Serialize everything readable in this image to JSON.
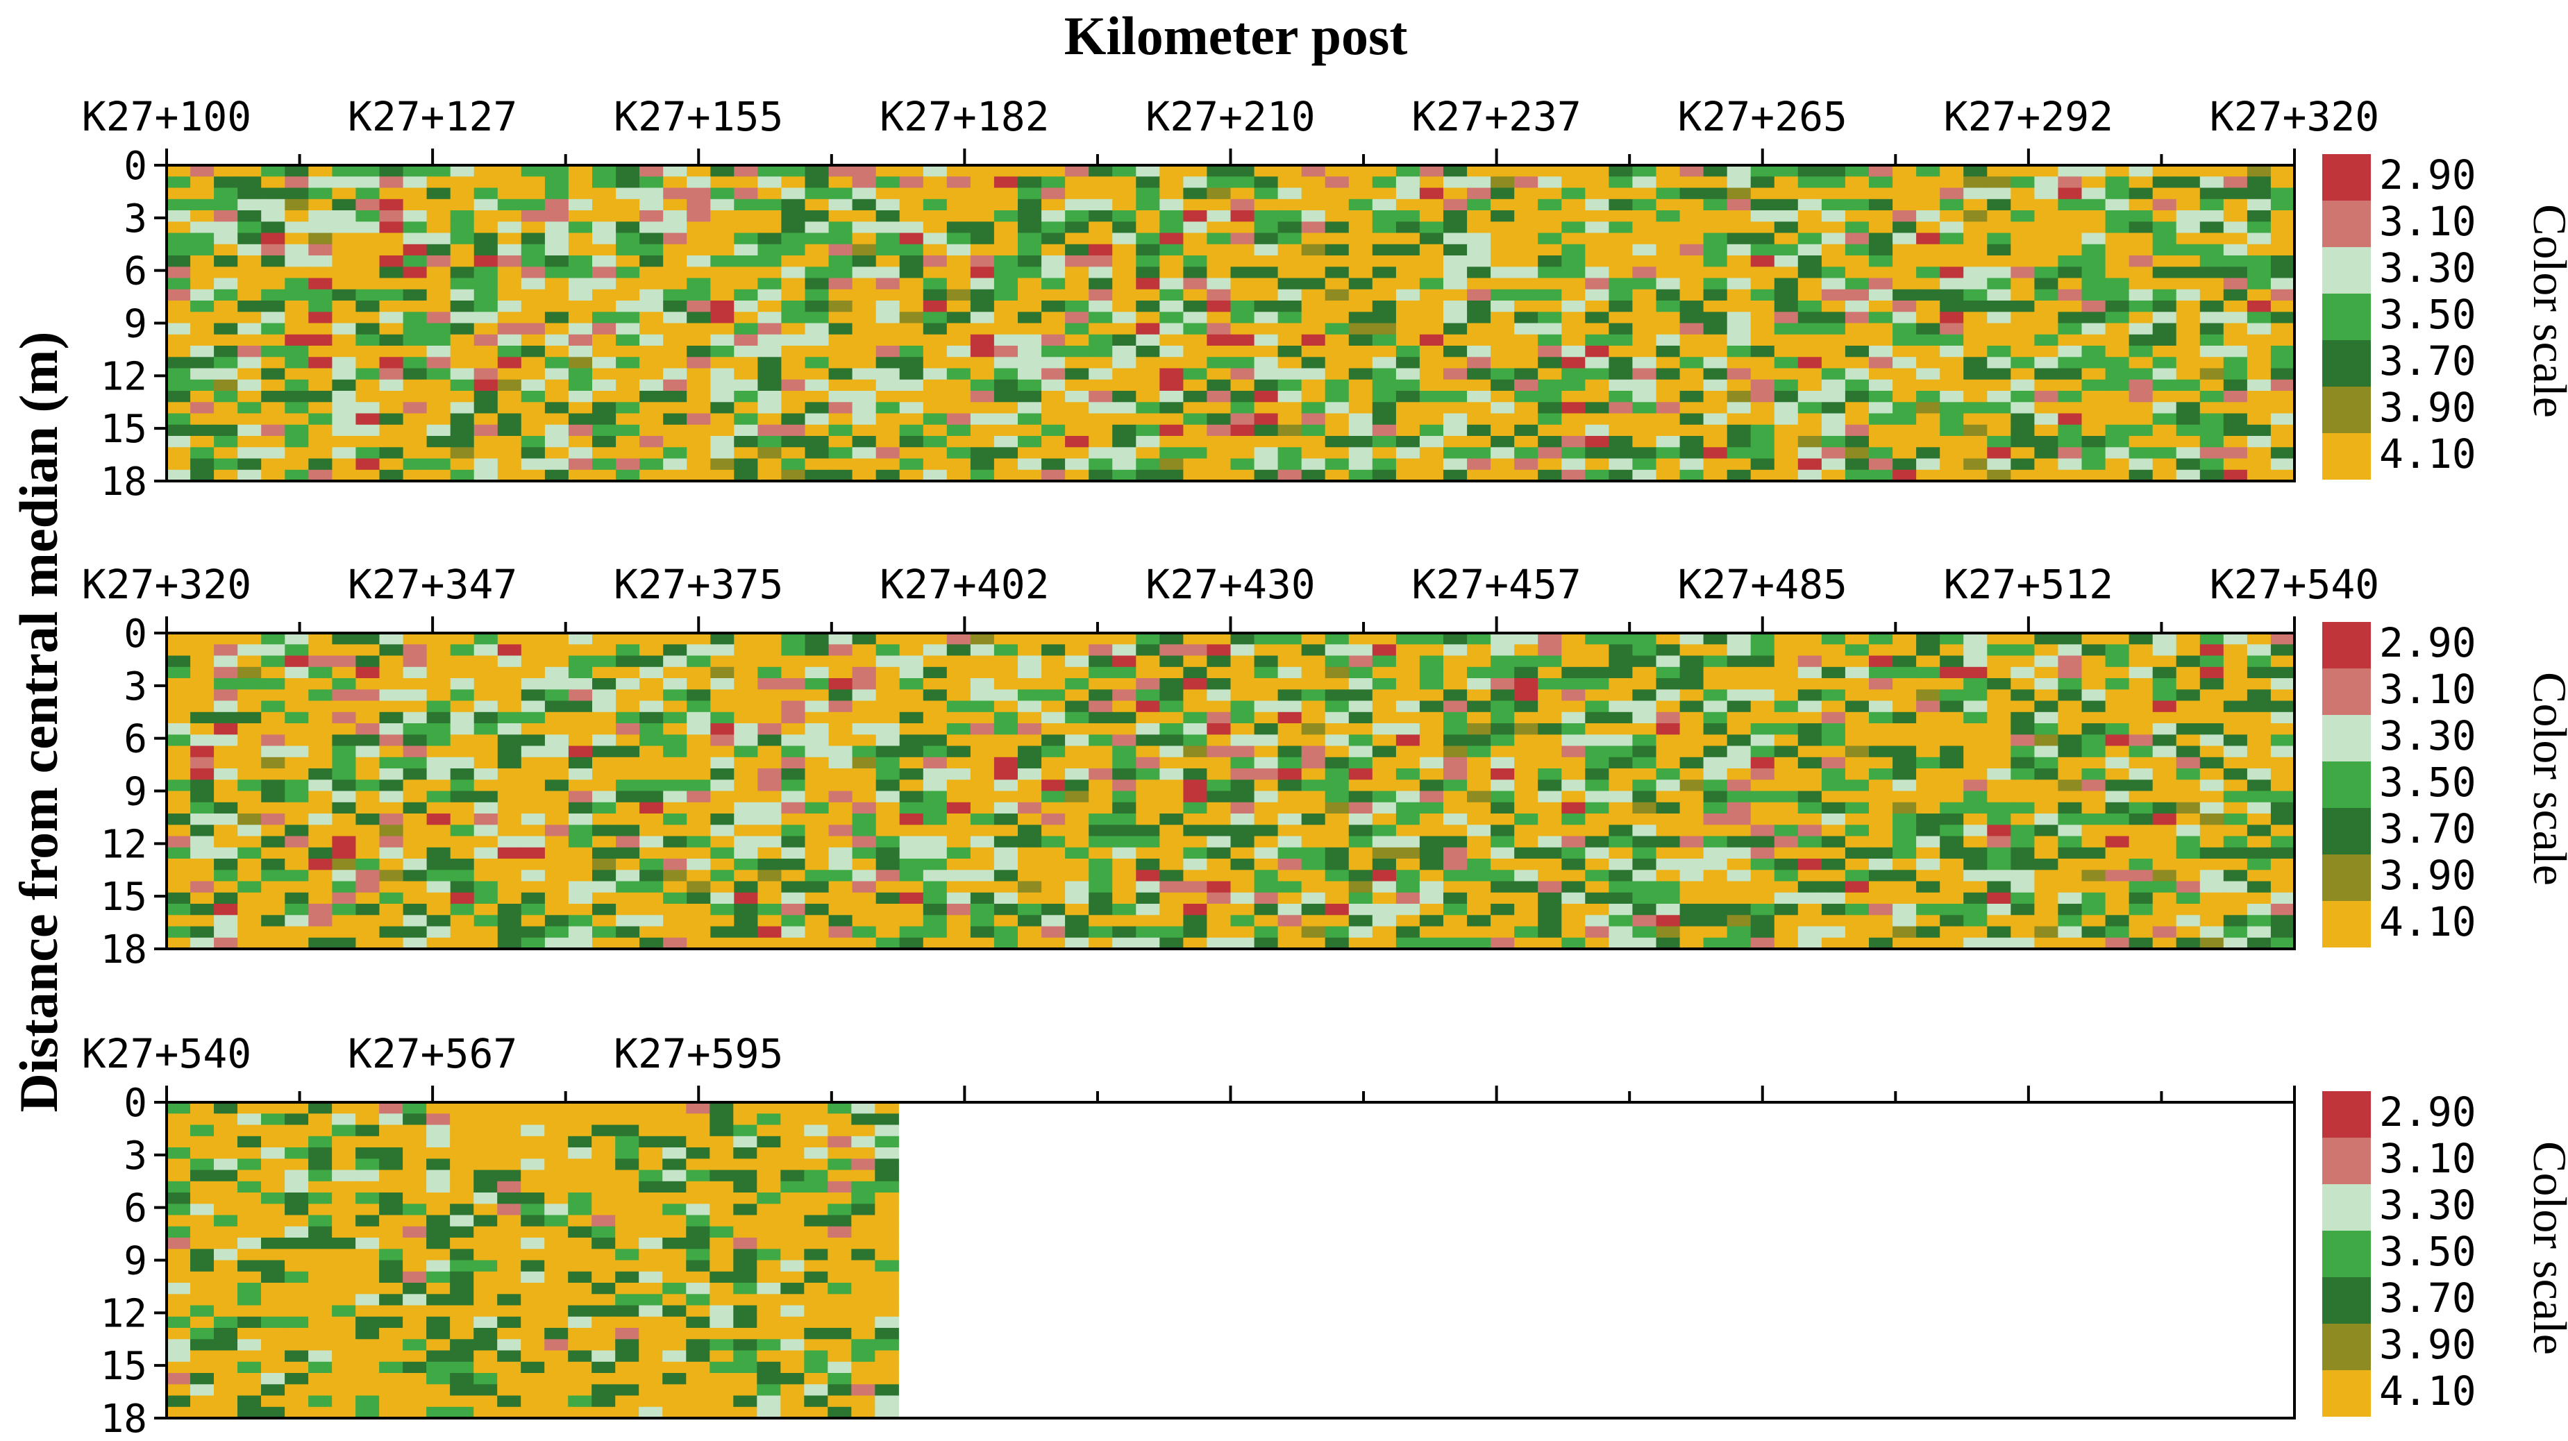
{
  "chart_data": {
    "type": "heatmap",
    "title": "Kilometer post",
    "ylabel": "Distance from central median (m)",
    "y_ticks": [
      "0",
      "3",
      "6",
      "9",
      "12",
      "15",
      "18"
    ],
    "ylim": [
      0,
      18
    ],
    "colors": {
      "c290": "#c0353a",
      "c310": "#cf7670",
      "c330": "#c5e4c8",
      "c350": "#3fa945",
      "c370": "#2c7530",
      "c390": "#8d8b22",
      "c410": "#ecb218"
    },
    "legend": {
      "title": "Color scale",
      "entries": [
        {
          "label": "2.90",
          "color": "#c0353a"
        },
        {
          "label": "3.10",
          "color": "#cf7670"
        },
        {
          "label": "3.30",
          "color": "#c5e4c8"
        },
        {
          "label": "3.50",
          "color": "#3fa945"
        },
        {
          "label": "3.70",
          "color": "#2c7530"
        },
        {
          "label": "3.90",
          "color": "#8d8b22"
        },
        {
          "label": "4.10",
          "color": "#ecb218"
        }
      ]
    },
    "panels": [
      {
        "x_ticks": [
          "K27+100",
          "K27+127",
          "K27+155",
          "K27+182",
          "K27+210",
          "K27+237",
          "K27+265",
          "K27+292",
          "K27+320"
        ],
        "data_extent": 1.0
      },
      {
        "x_ticks": [
          "K27+320",
          "K27+347",
          "K27+375",
          "K27+402",
          "K27+430",
          "K27+457",
          "K27+485",
          "K27+512",
          "K27+540"
        ],
        "data_extent": 1.0
      },
      {
        "x_ticks": [
          "K27+540",
          "K27+567",
          "K27+595",
          "",
          "",
          "",
          "",
          "",
          ""
        ],
        "data_extent": 0.344
      }
    ]
  }
}
